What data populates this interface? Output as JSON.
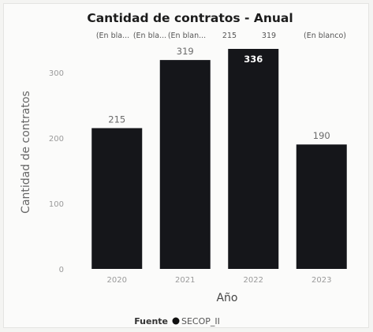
{
  "chart_data": {
    "type": "bar",
    "title": "Cantidad de contratos - Anual",
    "top_annotations": [
      "(En bla...",
      "(En bla...",
      "(En blan...",
      "215",
      "319",
      "(En blanco)"
    ],
    "categories": [
      "2020",
      "2021",
      "2022",
      "2023"
    ],
    "values": [
      215,
      319,
      336,
      190
    ],
    "data_labels": [
      "215",
      "319",
      "336",
      "190"
    ],
    "xlabel": "Año",
    "ylabel": "Cantidad de contratos",
    "ylim": [
      0,
      336
    ],
    "yticks": [
      0,
      100,
      200,
      300
    ],
    "grid": false,
    "bar_color": "#15161a",
    "legend": {
      "title": "Fuente",
      "entries": [
        {
          "name": "SECOP_II",
          "color": "#111111"
        }
      ],
      "placement": "bottom"
    }
  }
}
